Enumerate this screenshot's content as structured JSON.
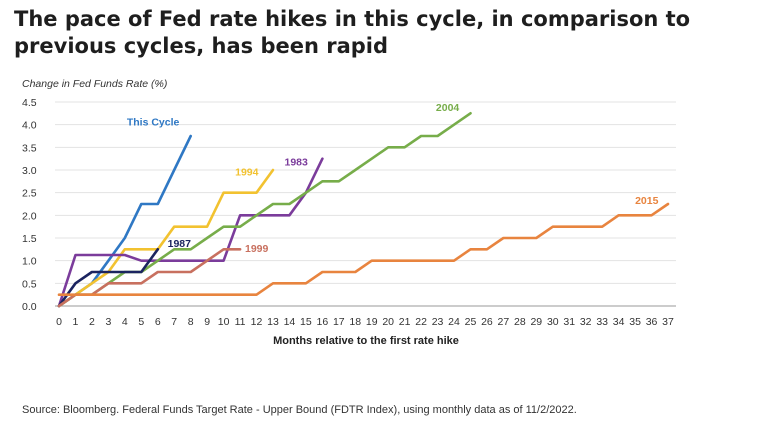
{
  "title": "The pace of Fed rate hikes in this cycle, in comparison to previous cycles, has been rapid",
  "source": "Source: Bloomberg. Federal Funds Target Rate - Upper Bound (FDTR Index), using monthly data as of 11/2/2022.",
  "chart_data": {
    "type": "line",
    "ylabel": "Change in Fed Funds Rate (%)",
    "xlabel": "Months relative to the first rate hike",
    "xlim": [
      0,
      37
    ],
    "ylim": [
      0,
      4.5
    ],
    "x_ticks": [
      0,
      1,
      2,
      3,
      4,
      5,
      6,
      7,
      8,
      9,
      10,
      11,
      12,
      13,
      14,
      15,
      16,
      17,
      18,
      19,
      20,
      21,
      22,
      23,
      24,
      25,
      26,
      27,
      28,
      29,
      30,
      31,
      32,
      33,
      34,
      35,
      36,
      37
    ],
    "y_ticks": [
      "0.0",
      "0.5",
      "1.0",
      "1.5",
      "2.0",
      "2.5",
      "3.0",
      "3.5",
      "4.0",
      "4.5"
    ],
    "grid": "horizontal",
    "legend": "inline labels",
    "series": [
      {
        "name": "This Cycle",
        "color": "#2f78c4",
        "x": [
          0,
          1,
          2,
          3,
          4,
          5,
          6,
          7,
          8
        ],
        "y": [
          0,
          0.25,
          0.5,
          1.0,
          1.5,
          2.25,
          2.25,
          3.0,
          3.75
        ]
      },
      {
        "name": "1994",
        "color": "#f2c230",
        "x": [
          0,
          1,
          2,
          3,
          4,
          5,
          6,
          7,
          8,
          9,
          10,
          11,
          12,
          13
        ],
        "y": [
          0,
          0.25,
          0.5,
          0.75,
          1.25,
          1.25,
          1.25,
          1.75,
          1.75,
          1.75,
          2.5,
          2.5,
          2.5,
          3.0
        ]
      },
      {
        "name": "1983",
        "color": "#7b3c9b",
        "x": [
          0,
          1,
          2,
          3,
          4,
          5,
          6,
          7,
          8,
          9,
          10,
          11,
          12,
          13,
          14,
          15,
          16
        ],
        "y": [
          0,
          1.125,
          1.125,
          1.125,
          1.125,
          1.0,
          1.0,
          1.0,
          1.0,
          1.0,
          1.0,
          2.0,
          2.0,
          2.0,
          2.0,
          2.5,
          3.25
        ]
      },
      {
        "name": "2004",
        "color": "#77ad4a",
        "x": [
          0,
          1,
          2,
          3,
          4,
          5,
          6,
          7,
          8,
          9,
          10,
          11,
          12,
          13,
          14,
          15,
          16,
          17,
          18,
          19,
          20,
          21,
          22,
          23,
          24,
          25
        ],
        "y": [
          0,
          0.25,
          0.25,
          0.5,
          0.75,
          0.75,
          1.0,
          1.25,
          1.25,
          1.5,
          1.75,
          1.75,
          2.0,
          2.25,
          2.25,
          2.5,
          2.75,
          2.75,
          3.0,
          3.25,
          3.5,
          3.5,
          3.75,
          3.75,
          4.0,
          4.25
        ]
      },
      {
        "name": "1987",
        "color": "#1b2460",
        "x": [
          0,
          1,
          2,
          3,
          4,
          5,
          6
        ],
        "y": [
          0,
          0.5,
          0.75,
          0.75,
          0.75,
          0.75,
          1.25
        ]
      },
      {
        "name": "1999",
        "color": "#c8705f",
        "x": [
          0,
          1,
          2,
          3,
          4,
          5,
          6,
          7,
          8,
          9,
          10,
          11
        ],
        "y": [
          0,
          0.25,
          0.25,
          0.5,
          0.5,
          0.5,
          0.75,
          0.75,
          0.75,
          1.0,
          1.25,
          1.25
        ]
      },
      {
        "name": "2015",
        "color": "#e8843f",
        "x": [
          0,
          12,
          13,
          14,
          15,
          16,
          17,
          18,
          19,
          20,
          21,
          22,
          23,
          24,
          25,
          26,
          27,
          28,
          29,
          30,
          31,
          32,
          33,
          34,
          35,
          36,
          37
        ],
        "y": [
          0.25,
          0.25,
          0.5,
          0.5,
          0.5,
          0.75,
          0.75,
          0.75,
          1.0,
          1.0,
          1.0,
          1.0,
          1.0,
          1.0,
          1.25,
          1.25,
          1.5,
          1.5,
          1.5,
          1.75,
          1.75,
          1.75,
          1.75,
          2.0,
          2.0,
          2.0,
          2.25
        ]
      }
    ]
  }
}
